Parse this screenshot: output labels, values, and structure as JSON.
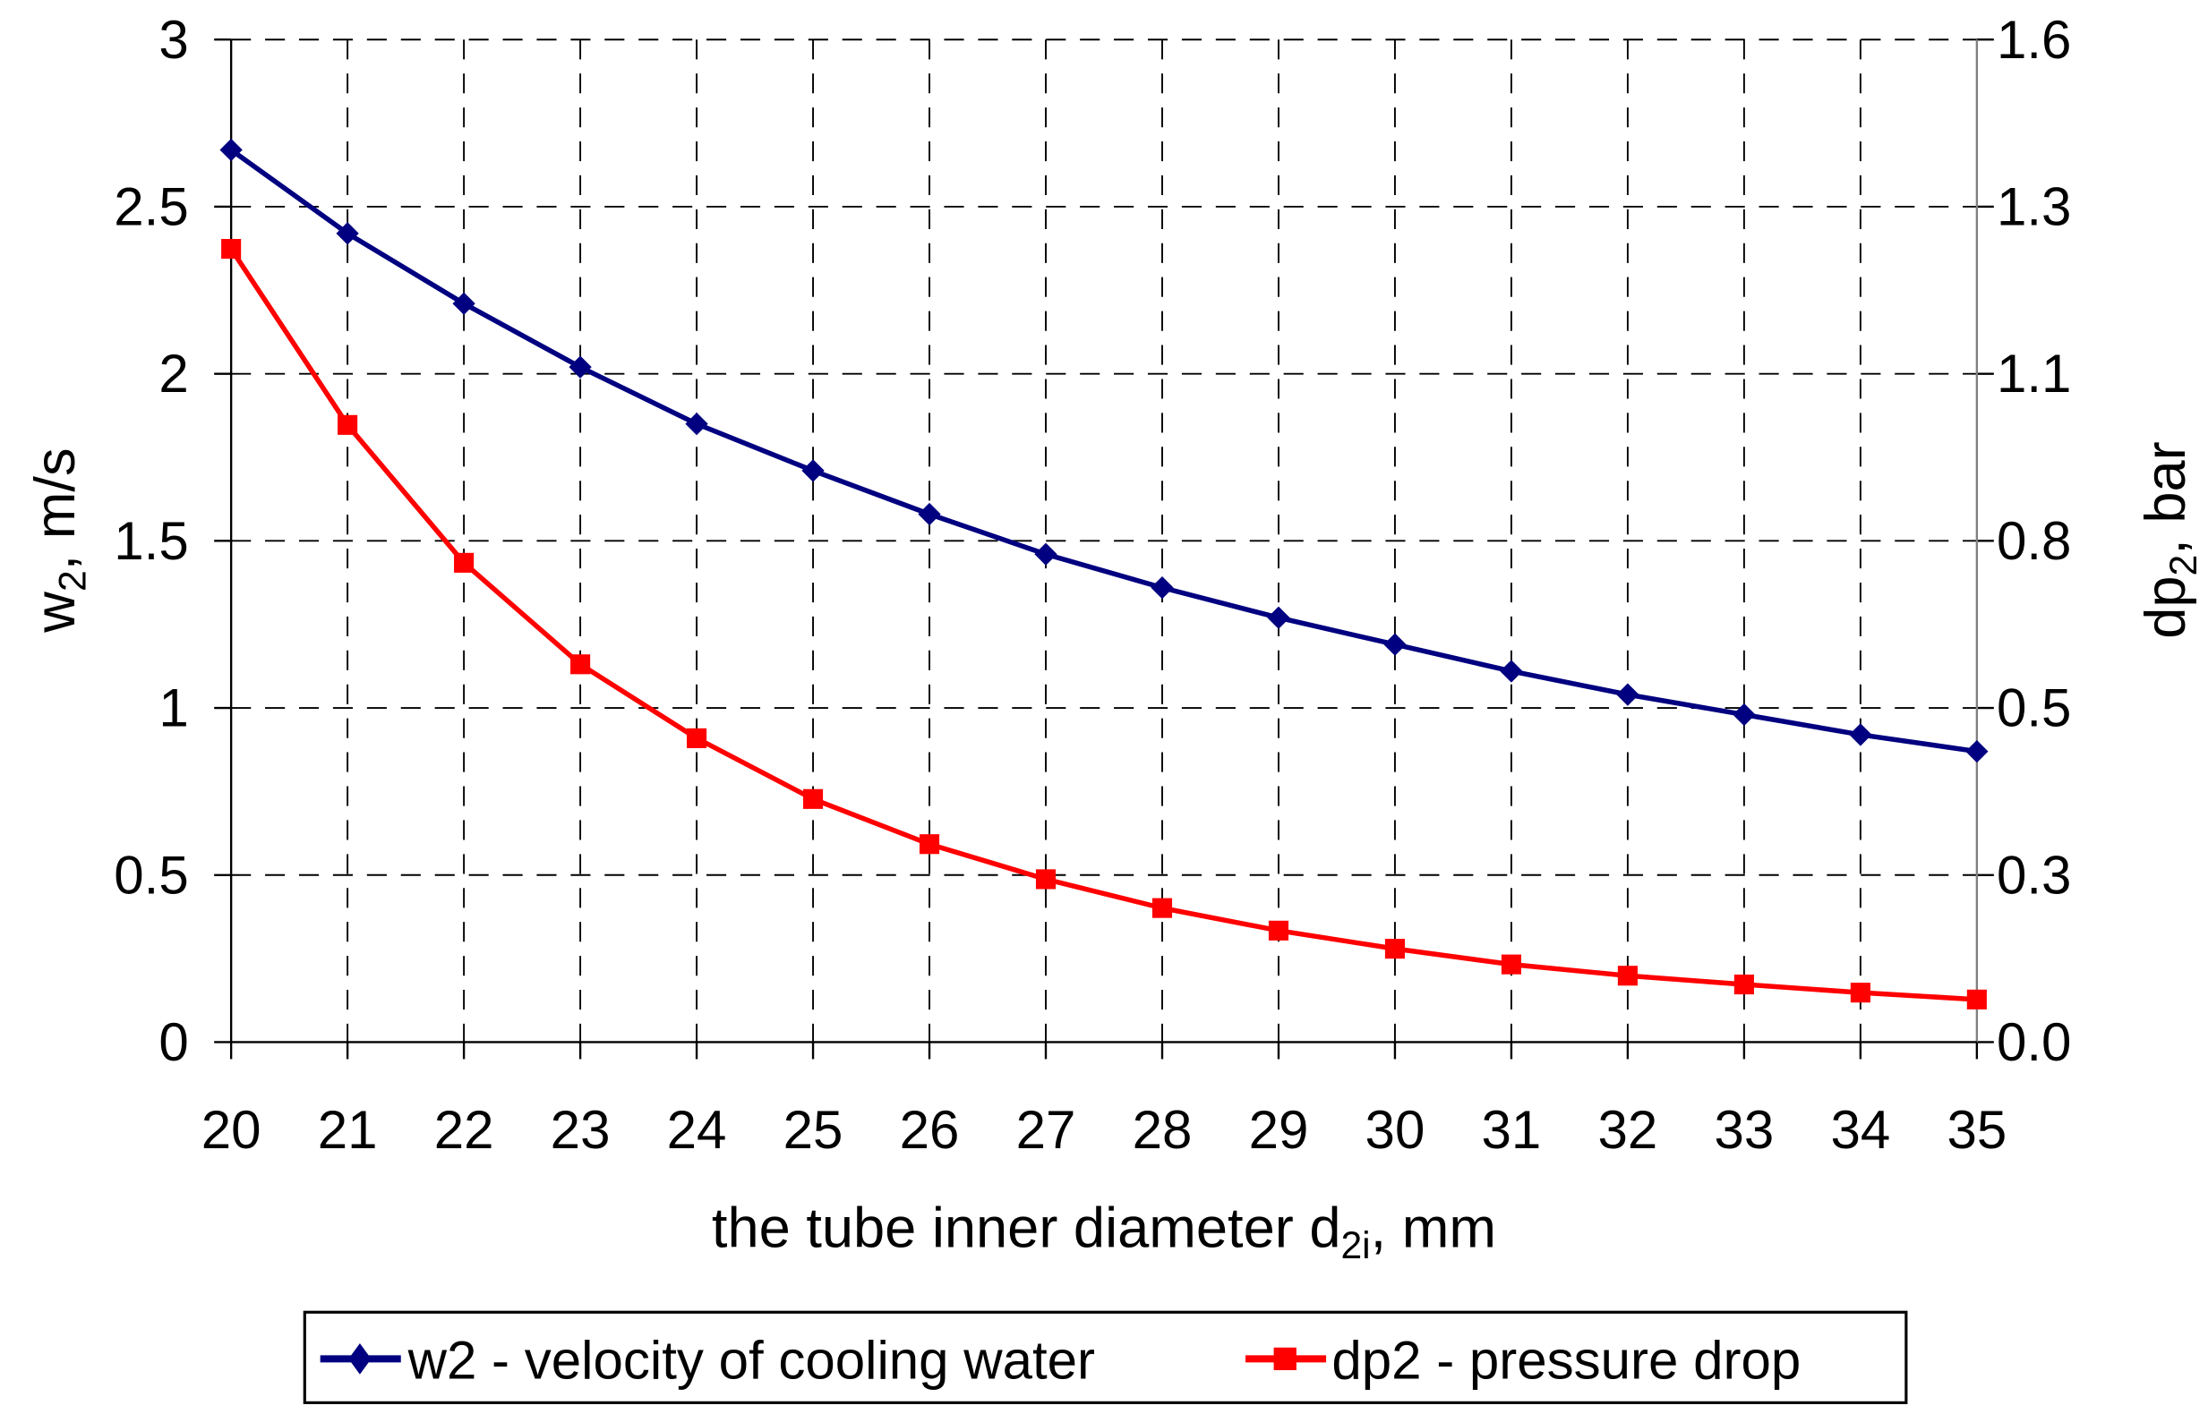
{
  "chart_data": {
    "type": "line",
    "title": "",
    "xlabel": "the tube inner diameter d",
    "xlabel_sub": "2i",
    "xlabel_suffix": ", mm",
    "ylabel": "w",
    "ylabel_sub": "2",
    "ylabel_suffix": ", m/s",
    "y2label": "dp",
    "y2label_sub": "2",
    "y2label_suffix": ", bar",
    "x": [
      20,
      21,
      22,
      23,
      24,
      25,
      26,
      27,
      28,
      29,
      30,
      31,
      32,
      33,
      34,
      35
    ],
    "xlim": [
      20,
      35
    ],
    "ylim": [
      0,
      3
    ],
    "y2lim": [
      0,
      1.6
    ],
    "yticks": [
      "0",
      "0.5",
      "1",
      "1.5",
      "2",
      "2.5",
      "3"
    ],
    "y2ticks": [
      "0.0",
      "0.3",
      "0.5",
      "0.8",
      "1.1",
      "1.3",
      "1.6"
    ],
    "grid": true,
    "legend_position": "bottom",
    "series": [
      {
        "name": "w2 - velocity of cooling water",
        "axis": "left",
        "color": "#000080",
        "marker": "diamond",
        "values": [
          2.67,
          2.42,
          2.21,
          2.02,
          1.85,
          1.71,
          1.58,
          1.46,
          1.36,
          1.27,
          1.19,
          1.11,
          1.04,
          0.98,
          0.92,
          0.87
        ]
      },
      {
        "name": "dp2 - pressure drop",
        "axis": "right",
        "color": "#ff0000",
        "marker": "square",
        "values": [
          1.266,
          0.985,
          0.765,
          0.603,
          0.485,
          0.388,
          0.316,
          0.26,
          0.214,
          0.178,
          0.149,
          0.124,
          0.106,
          0.092,
          0.079,
          0.068
        ]
      }
    ]
  }
}
